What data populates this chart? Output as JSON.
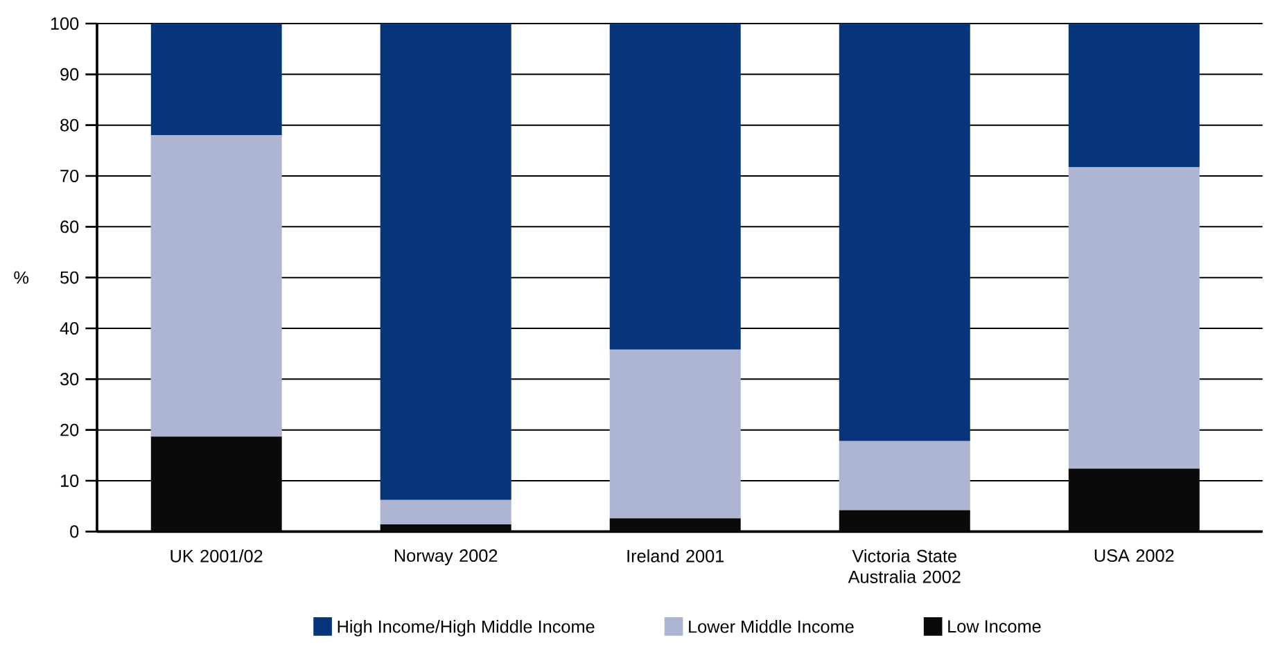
{
  "chart_data": {
    "type": "bar",
    "stacked": true,
    "ylabel": "%",
    "categories": [
      "UK 2001/02",
      "Norway 2002",
      "Ireland 2001",
      "Victoria State Australia 2002",
      "USA 2002"
    ],
    "series": [
      {
        "name": "Low Income",
        "color": "#0a0a0a",
        "values": [
          18.7,
          1.4,
          2.6,
          4.2,
          12.4
        ]
      },
      {
        "name": "Lower Middle Income",
        "color": "#adb5d3",
        "values": [
          59.3,
          4.8,
          33.2,
          13.6,
          59.3
        ]
      },
      {
        "name": "High Income/High Middle Income",
        "color": "#06357a",
        "values": [
          22.0,
          93.8,
          64.2,
          82.2,
          28.3
        ]
      }
    ],
    "ylim": [
      0,
      100
    ],
    "yticks": [
      0,
      10,
      20,
      30,
      40,
      50,
      60,
      70,
      80,
      90,
      100
    ],
    "grid": "y",
    "legend": "bottom"
  }
}
